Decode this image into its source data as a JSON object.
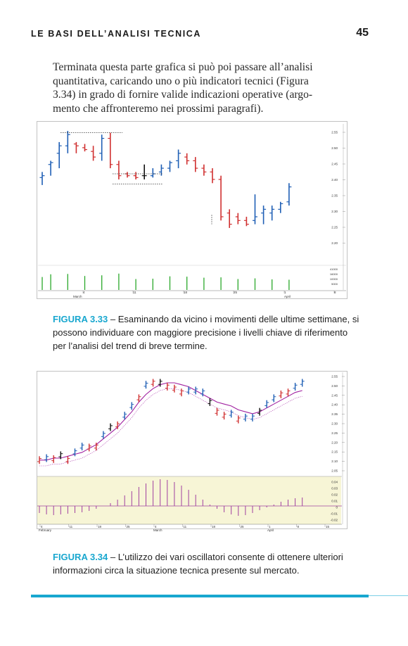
{
  "header": {
    "running_title": "LE BASI DELL’ANALISI TECNICA",
    "page_number": "45"
  },
  "body_text": {
    "lines": [
      "Terminata questa parte grafica si può poi passare all’analisi",
      "quantitativa, caricando uno o più indicatori tecnici (Figura",
      "3.34) in grado di fornire valide indicazioni operative (argo-",
      "mento che affronteremo nei prossimi paragrafi)."
    ]
  },
  "figure1": {
    "label": "FIGURA 3.33",
    "caption": " – Esaminando da vicino i movimenti delle ultime settimane, si possono individuare con maggiore precisione i livelli chiave di riferimento per l’analisi del trend di breve termine.",
    "y_ticks": [
      "2.55",
      "2.50",
      "2.45",
      "2.40",
      "2.35",
      "2.30",
      "2.25",
      "2.20"
    ],
    "vol_ticks": [
      "41000",
      "16000",
      "10000",
      "5000"
    ],
    "x_ticks": [
      "4",
      "11",
      "18",
      "25",
      "1",
      "8"
    ],
    "month_labels": [
      "March",
      "April"
    ],
    "colors": {
      "up": "#1f5fb5",
      "down": "#d03030",
      "neutral": "#111111",
      "volume": "#2aa82a"
    }
  },
  "figure2": {
    "label": "FIGURA 3.34",
    "caption": " – L’utilizzo dei vari oscillatori consente di ottenere ulteriori informazioni circa la situazione tecnica presente sul mercato.",
    "y_ticks": [
      "2.55",
      "2.50",
      "2.45",
      "2.40",
      "2.35",
      "2.30",
      "2.25",
      "2.20",
      "2.15",
      "2.10",
      "2.05"
    ],
    "osc_ticks": [
      "0.04",
      "0.03",
      "0.02",
      "0.01",
      "0",
      "-0.01",
      "-0.02"
    ],
    "x_ticks": [
      "4",
      "11",
      "18",
      "25",
      "4",
      "11",
      "18",
      "25",
      "1",
      "8",
      "15"
    ],
    "month_labels": [
      "February",
      "March",
      "April"
    ],
    "colors": {
      "up": "#1f5fb5",
      "down": "#d03030",
      "neutral": "#111111",
      "ma": "#a020a0",
      "osc_bg": "#f7f5d6",
      "osc_bar": "#a040a0"
    }
  },
  "chart_data": [
    {
      "type": "bar",
      "subtype": "ohlc",
      "title": "",
      "ylim": [
        2.2,
        2.56
      ],
      "bars": [
        {
          "o": 2.435,
          "h": 2.45,
          "l": 2.415,
          "c": 2.44
        },
        {
          "o": 2.47,
          "h": 2.48,
          "l": 2.44,
          "c": 2.475
        },
        {
          "o": 2.5,
          "h": 2.53,
          "l": 2.46,
          "c": 2.52
        },
        {
          "o": 2.52,
          "h": 2.56,
          "l": 2.5,
          "c": 2.55
        },
        {
          "o": 2.525,
          "h": 2.53,
          "l": 2.5,
          "c": 2.52
        },
        {
          "o": 2.515,
          "h": 2.525,
          "l": 2.505,
          "c": 2.51
        },
        {
          "o": 2.505,
          "h": 2.52,
          "l": 2.48,
          "c": 2.49
        },
        {
          "o": 2.5,
          "h": 2.55,
          "l": 2.48,
          "c": 2.54
        },
        {
          "o": 2.54,
          "h": 2.555,
          "l": 2.46,
          "c": 2.47
        },
        {
          "o": 2.47,
          "h": 2.48,
          "l": 2.43,
          "c": 2.44
        },
        {
          "o": 2.445,
          "h": 2.45,
          "l": 2.435,
          "c": 2.44
        },
        {
          "o": 2.44,
          "h": 2.45,
          "l": 2.43,
          "c": 2.435
        },
        {
          "o": 2.44,
          "h": 2.47,
          "l": 2.43,
          "c": 2.44
        },
        {
          "o": 2.44,
          "h": 2.46,
          "l": 2.435,
          "c": 2.445
        },
        {
          "o": 2.45,
          "h": 2.47,
          "l": 2.44,
          "c": 2.46
        },
        {
          "o": 2.46,
          "h": 2.48,
          "l": 2.45,
          "c": 2.475
        },
        {
          "o": 2.48,
          "h": 2.51,
          "l": 2.46,
          "c": 2.5
        },
        {
          "o": 2.49,
          "h": 2.5,
          "l": 2.47,
          "c": 2.48
        },
        {
          "o": 2.48,
          "h": 2.49,
          "l": 2.45,
          "c": 2.46
        },
        {
          "o": 2.46,
          "h": 2.47,
          "l": 2.44,
          "c": 2.45
        },
        {
          "o": 2.45,
          "h": 2.46,
          "l": 2.42,
          "c": 2.43
        },
        {
          "o": 2.43,
          "h": 2.44,
          "l": 2.32,
          "c": 2.33
        },
        {
          "o": 2.34,
          "h": 2.35,
          "l": 2.3,
          "c": 2.31
        },
        {
          "o": 2.33,
          "h": 2.34,
          "l": 2.31,
          "c": 2.32
        },
        {
          "o": 2.32,
          "h": 2.33,
          "l": 2.305,
          "c": 2.31
        },
        {
          "o": 2.32,
          "h": 2.39,
          "l": 2.31,
          "c": 2.33
        },
        {
          "o": 2.34,
          "h": 2.36,
          "l": 2.31,
          "c": 2.35
        },
        {
          "o": 2.34,
          "h": 2.36,
          "l": 2.32,
          "c": 2.35
        },
        {
          "o": 2.35,
          "h": 2.37,
          "l": 2.34,
          "c": 2.365
        },
        {
          "o": 2.37,
          "h": 2.42,
          "l": 2.36,
          "c": 2.41
        }
      ],
      "volume": [
        3800,
        4600,
        0,
        4700,
        0,
        4100,
        0,
        4300,
        0,
        4800,
        0,
        3200,
        0,
        3300,
        0,
        4000,
        0,
        3900,
        0,
        3600,
        0,
        3700,
        0,
        3200,
        0,
        3400,
        0,
        3100,
        0,
        3000
      ]
    },
    {
      "type": "bar",
      "subtype": "ohlc",
      "title": "",
      "ylim": [
        2.05,
        2.56
      ],
      "ma": [
        2.12,
        2.12,
        2.13,
        2.13,
        2.14,
        2.15,
        2.16,
        2.18,
        2.2,
        2.23,
        2.26,
        2.29,
        2.33,
        2.37,
        2.42,
        2.46,
        2.49,
        2.51,
        2.52,
        2.52,
        2.51,
        2.5,
        2.48,
        2.46,
        2.44,
        2.42,
        2.41,
        2.4,
        2.38,
        2.37,
        2.36,
        2.37,
        2.39,
        2.41,
        2.43,
        2.45,
        2.47,
        2.48
      ],
      "oscillator": [
        -0.01,
        -0.012,
        -0.013,
        -0.012,
        -0.011,
        -0.01,
        -0.009,
        -0.007,
        -0.004,
        0.0,
        0.004,
        0.009,
        0.015,
        0.021,
        0.027,
        0.032,
        0.036,
        0.038,
        0.037,
        0.034,
        0.029,
        0.023,
        0.016,
        0.009,
        0.002,
        -0.004,
        -0.009,
        -0.012,
        -0.014,
        -0.013,
        -0.01,
        -0.006,
        -0.002,
        0.002,
        0.006,
        0.009,
        0.011,
        0.012
      ]
    }
  ]
}
